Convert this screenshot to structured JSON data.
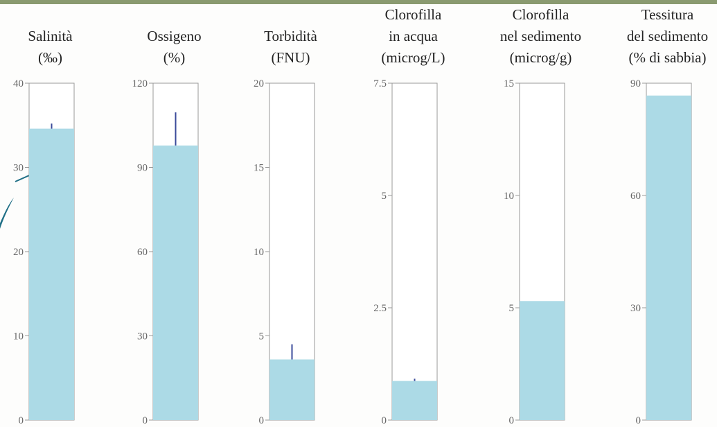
{
  "chart_data": [
    {
      "type": "bar",
      "title": [
        "Salinità",
        "(‰)"
      ],
      "values": [
        34.6
      ],
      "errors": [
        0.6
      ],
      "ylim": [
        0,
        40
      ],
      "yticks": [
        0,
        10,
        20,
        30,
        40
      ],
      "color": "#acdae6"
    },
    {
      "type": "bar",
      "title": [
        "Ossigeno",
        "(%)"
      ],
      "values": [
        97.8
      ],
      "errors": [
        11.8
      ],
      "ylim": [
        0,
        120
      ],
      "yticks": [
        0,
        30,
        60,
        90,
        120
      ],
      "color": "#acdae6"
    },
    {
      "type": "bar",
      "title": [
        "Torbidità",
        "(FNU)"
      ],
      "values": [
        3.6
      ],
      "errors": [
        0.9
      ],
      "ylim": [
        0,
        20
      ],
      "yticks": [
        0,
        5,
        10,
        15,
        20
      ],
      "color": "#acdae6"
    },
    {
      "type": "bar",
      "title": [
        "Clorofilla",
        "in acqua",
        "(microg/L)"
      ],
      "values": [
        0.87
      ],
      "errors": [
        0.05
      ],
      "ylim": [
        0,
        7.5
      ],
      "yticks": [
        0,
        2.5,
        5,
        7.5
      ],
      "color": "#acdae6"
    },
    {
      "type": "bar",
      "title": [
        "Clorofilla",
        "nel sedimento",
        "(microg/g)"
      ],
      "values": [
        5.3
      ],
      "ylim": [
        0,
        15
      ],
      "yticks": [
        0,
        5,
        10,
        15
      ],
      "color": "#acdae6"
    },
    {
      "type": "bar",
      "title": [
        "Tessitura",
        "del sedimento",
        "(% di sabbia)"
      ],
      "values": [
        86.7
      ],
      "ylim": [
        0,
        90
      ],
      "yticks": [
        0,
        30,
        60,
        90
      ],
      "color": "#acdae6"
    }
  ]
}
